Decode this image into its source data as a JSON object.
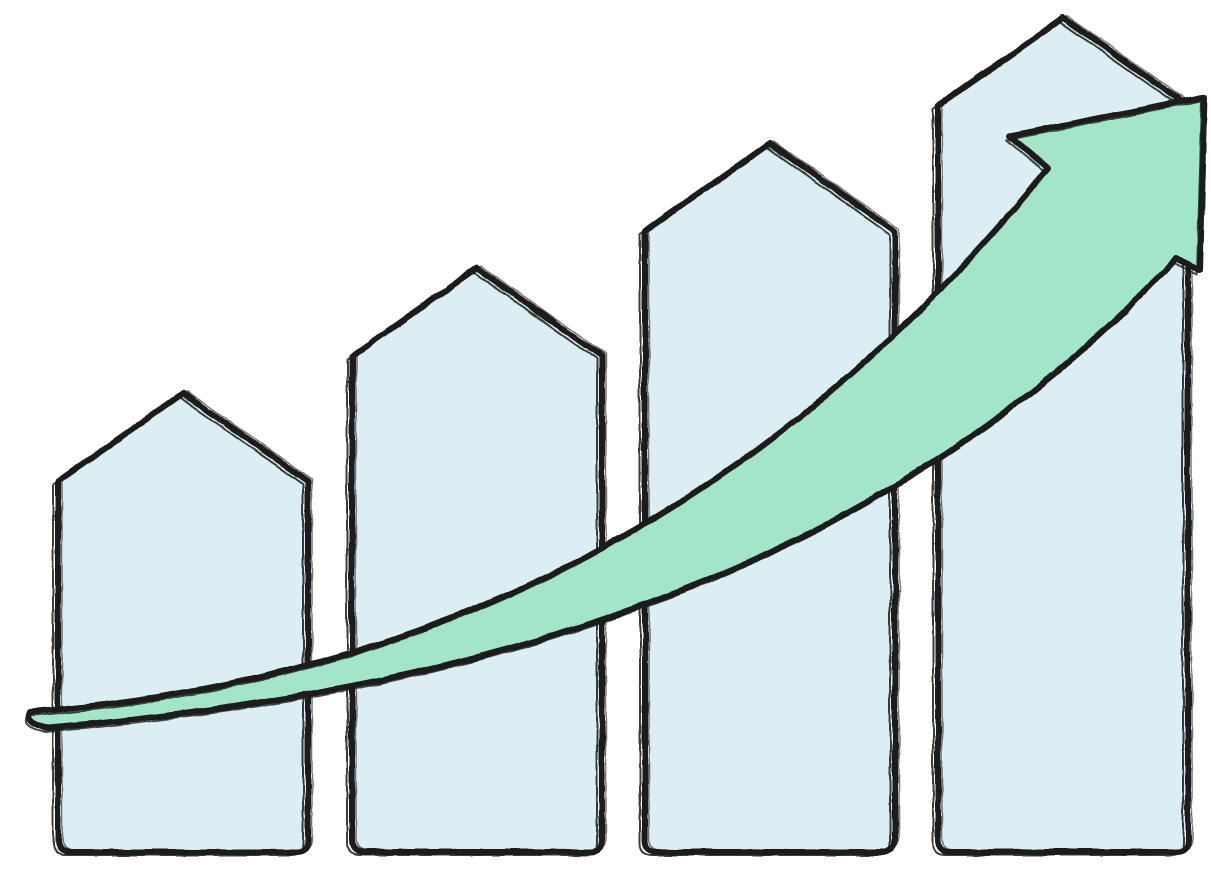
{
  "illustration": {
    "subject": "growth-chart-with-upward-arrow",
    "bars": [
      {
        "relative_height": 0.55
      },
      {
        "relative_height": 0.7
      },
      {
        "relative_height": 0.85
      },
      {
        "relative_height": 1.0
      }
    ],
    "colors": {
      "bar_fill": "#dceef4",
      "arrow_fill": "#a3e5c9",
      "outline": "#1c1c1c",
      "background": "#ffffff"
    }
  }
}
